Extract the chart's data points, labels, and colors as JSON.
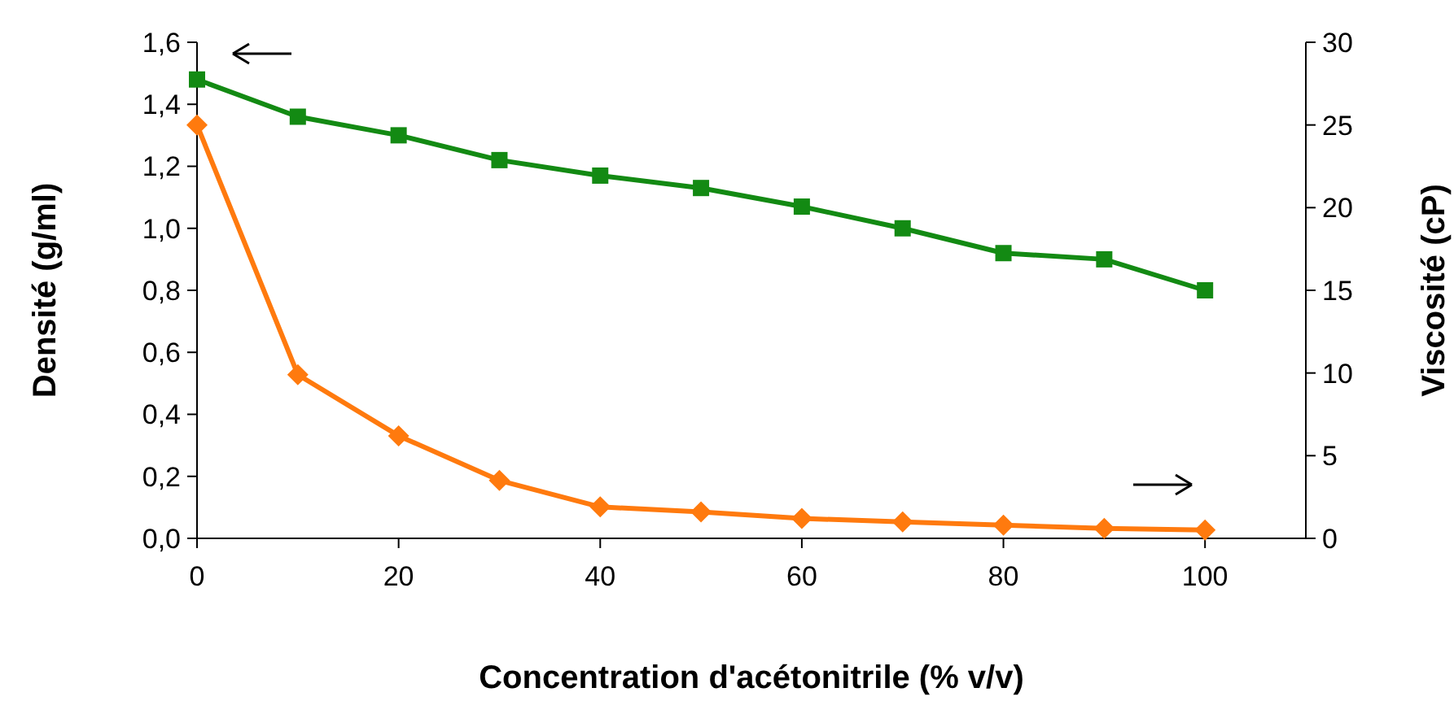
{
  "chart_data": {
    "type": "line",
    "xlabel": "Concentration d'acétonitrile (% v/v)",
    "ylabel": "Densité (g/ml)",
    "y2label": "Viscosité (cP)",
    "x": [
      0,
      10,
      20,
      30,
      40,
      50,
      60,
      70,
      80,
      90,
      100
    ],
    "xlim": [
      0,
      110
    ],
    "xticks": [
      0,
      20,
      40,
      60,
      80,
      100
    ],
    "ylim": [
      0,
      1.6
    ],
    "yticks": [
      {
        "value": 0,
        "label": "0,0"
      },
      {
        "value": 0.2,
        "label": "0,2"
      },
      {
        "value": 0.4,
        "label": "0,4"
      },
      {
        "value": 0.6,
        "label": "0,6"
      },
      {
        "value": 0.8,
        "label": "0,8"
      },
      {
        "value": 1,
        "label": "1,0"
      },
      {
        "value": 1.2,
        "label": "1,2"
      },
      {
        "value": 1.4,
        "label": "1,4"
      },
      {
        "value": 1.6,
        "label": "1,6"
      }
    ],
    "y2lim": [
      0,
      30
    ],
    "y2ticks": [
      0,
      5,
      10,
      15,
      20,
      25,
      30
    ],
    "grid": false,
    "line_style": "solid",
    "series": [
      {
        "color": "#138a13",
        "marker": "square",
        "values": [
          1.48,
          1.36,
          1.3,
          1.22,
          1.17,
          1.13,
          1.07,
          1.0,
          0.92,
          0.9,
          0.8
        ]
      },
      {
        "color": "#ff7a0e",
        "marker": "diamond",
        "axis": "y2",
        "values": [
          25.0,
          9.9,
          6.2,
          3.5,
          1.9,
          1.6,
          1.2,
          1.0,
          0.8,
          0.6,
          0.5
        ]
      }
    ]
  }
}
